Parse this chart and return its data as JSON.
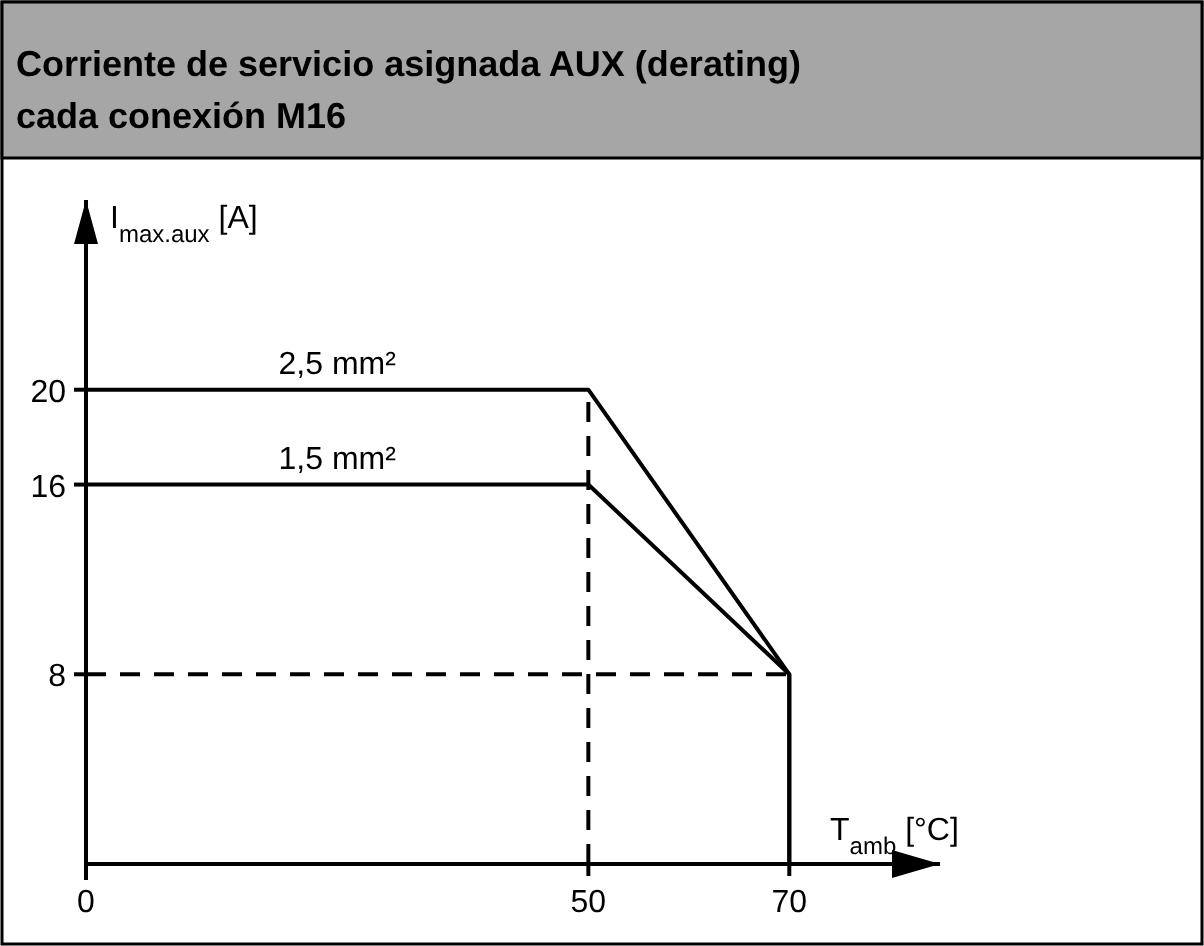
{
  "chart_data": {
    "type": "line",
    "title": "Corriente de servicio asignada AUX (derating) cada conexión M16",
    "xlabel": "T$_{amb}$ [°C]",
    "ylabel": "I$_{max.aux}$ [A]",
    "x": [
      0,
      50,
      70,
      70
    ],
    "series": [
      {
        "name": "2,5 mm²",
        "color": "#000000",
        "values": [
          20,
          20,
          8,
          0
        ]
      },
      {
        "name": "1,5 mm²",
        "color": "#000000",
        "values": [
          16,
          16,
          8,
          0
        ]
      }
    ],
    "xlim": [
      0,
      85
    ],
    "xticks": [
      0,
      50,
      70
    ],
    "ylim": [
      0,
      28
    ],
    "yticks": [
      8,
      16,
      20
    ],
    "ref_lines": [
      {
        "axis": "x",
        "value": 50,
        "line_style": "dashed"
      },
      {
        "axis": "y",
        "value": 8,
        "line_style": "dashed"
      }
    ],
    "grid": false,
    "marker": "none",
    "line_style": "solid"
  }
}
